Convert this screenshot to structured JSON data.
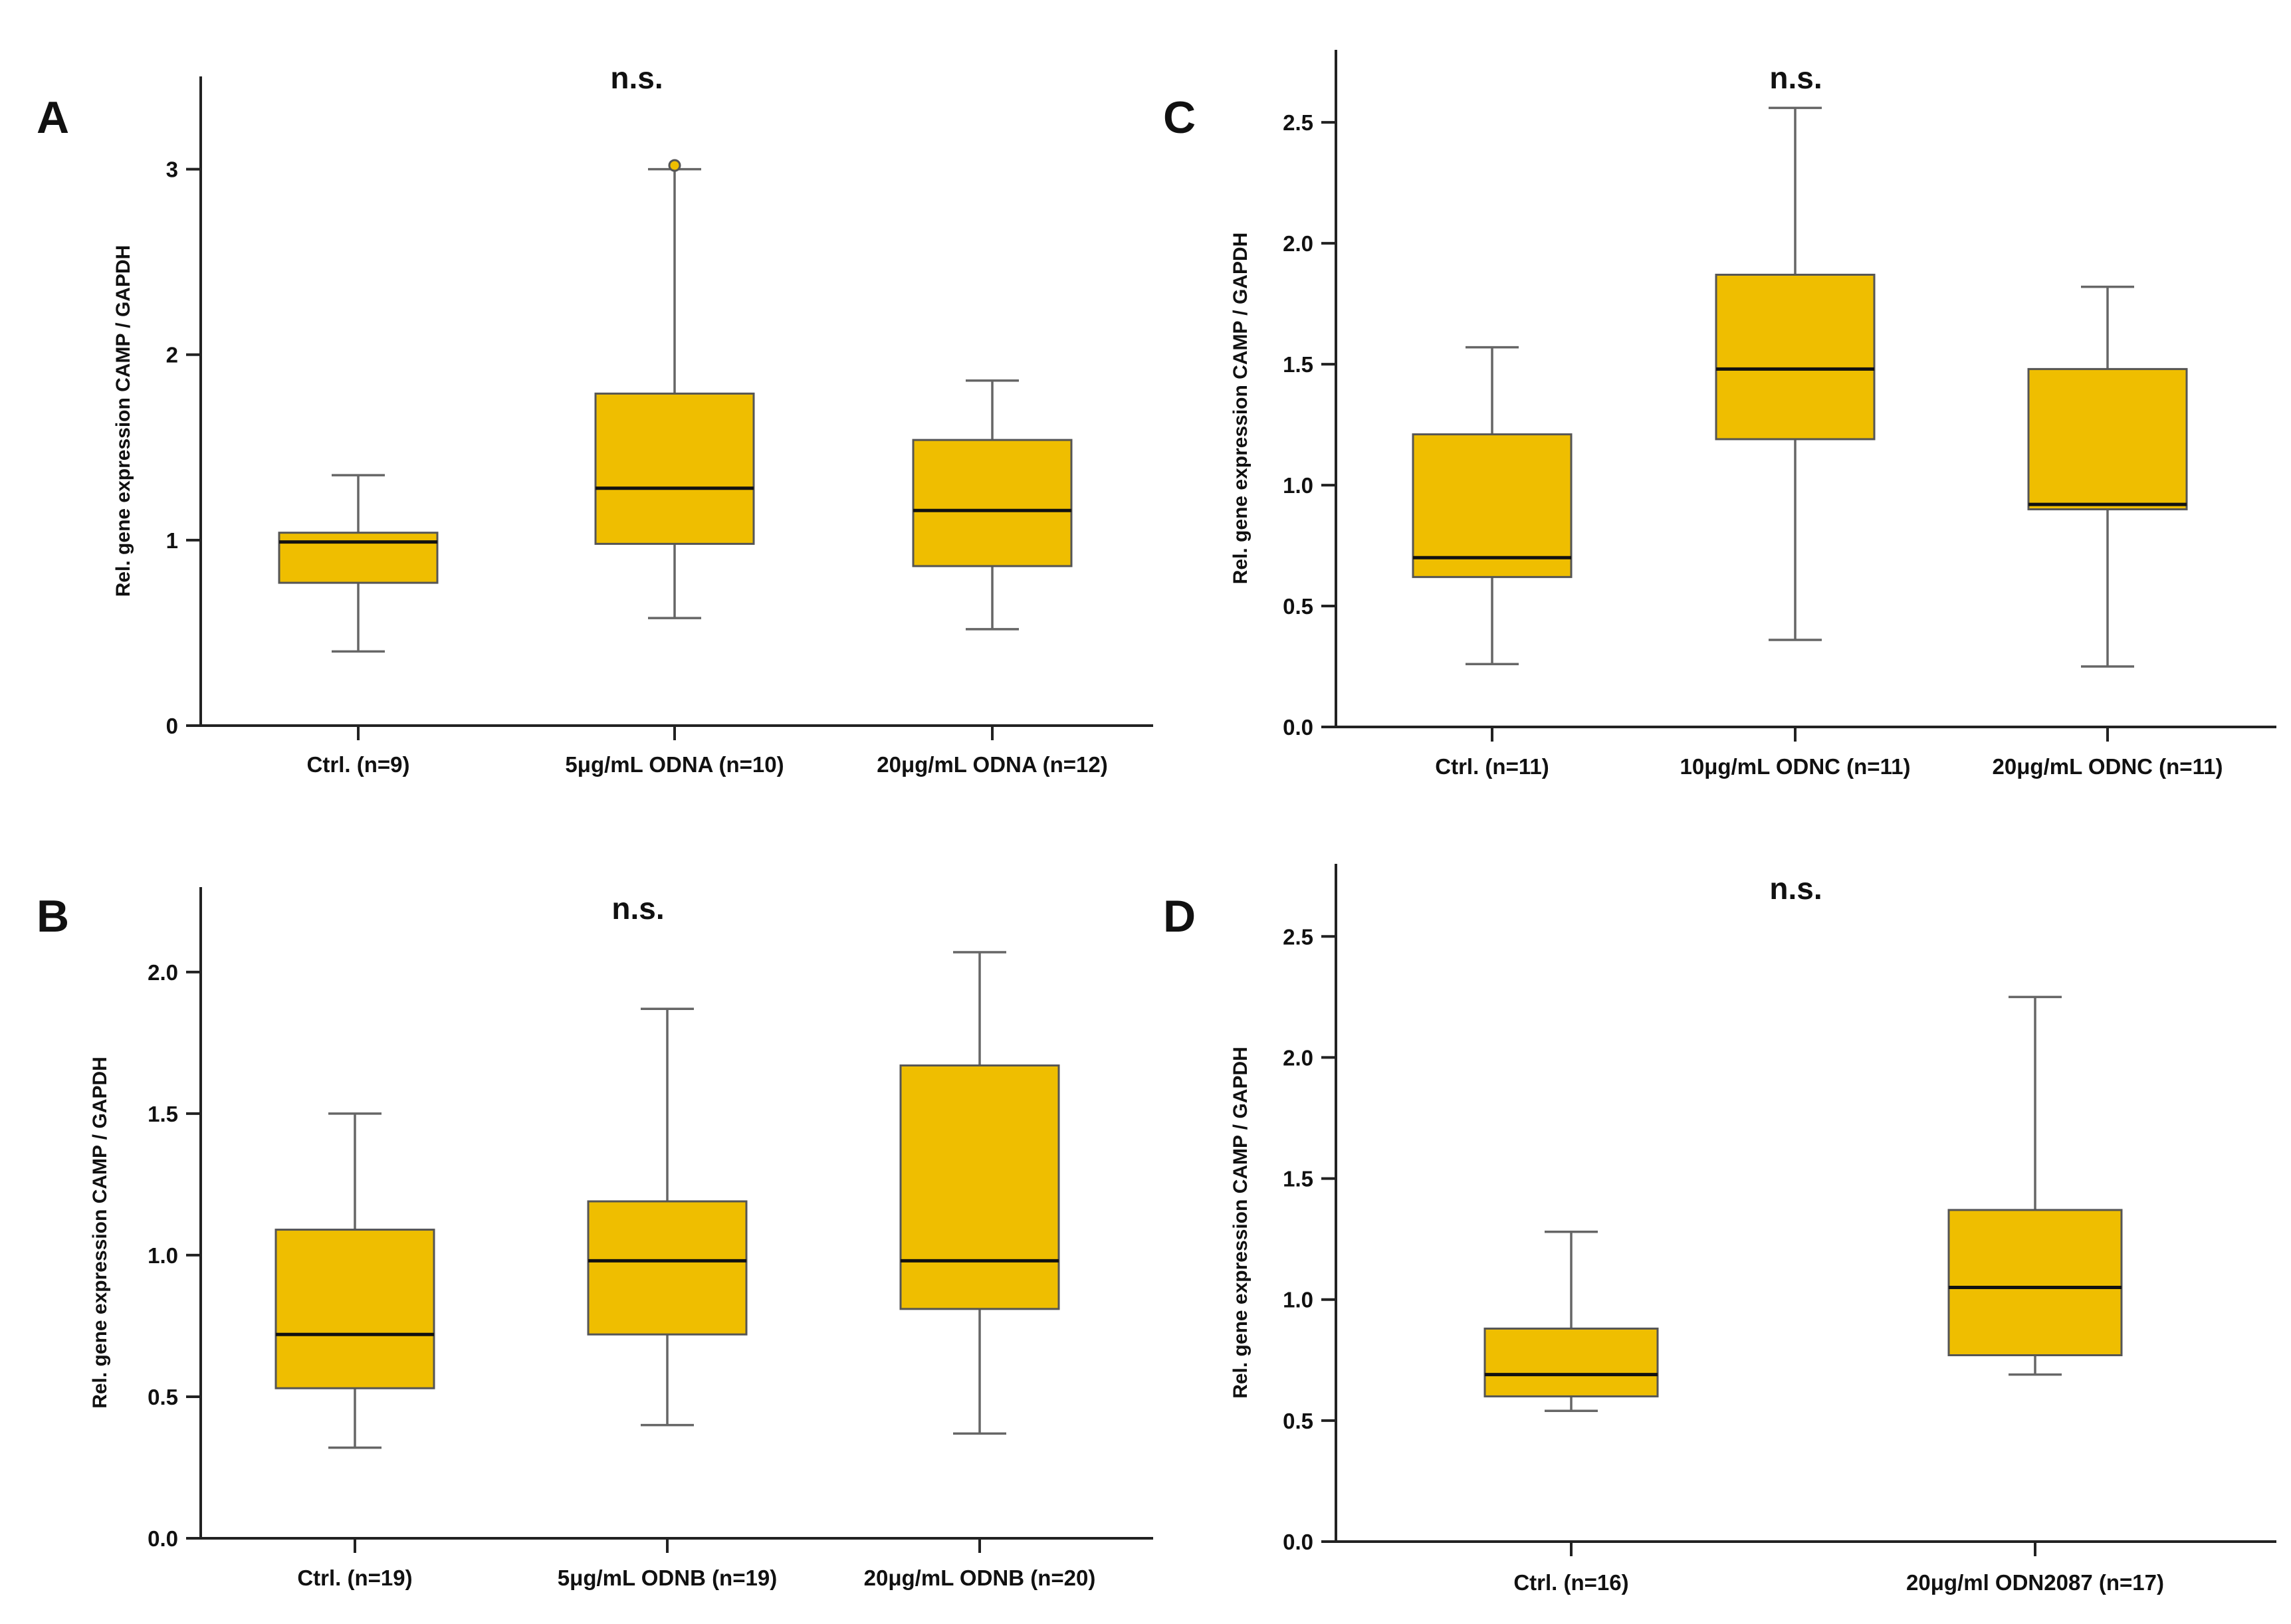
{
  "colors": {
    "box_fill": "#EFBE00",
    "box_stroke": "#555555",
    "median": "#111111",
    "axis": "#222222",
    "whisker": "#666666",
    "outlier_fill": "#EFBE00"
  },
  "chart_data": [
    {
      "panel": "A",
      "type": "box",
      "annotation": "n.s.",
      "ylabel": "Rel. gene expression CAMP / GAPDH",
      "ylim": [
        0,
        3.5
      ],
      "yticks": [
        0,
        1,
        2,
        3
      ],
      "ytick_labels": [
        "0",
        "1",
        "2",
        "3"
      ],
      "categories": [
        "Ctrl. (n=9)",
        "5μg/mL ODNA (n=10)",
        "20μg/mL ODNA (n=12)"
      ],
      "boxes": [
        {
          "min": 0.4,
          "q1": 0.77,
          "median": 0.99,
          "q3": 1.04,
          "max": 1.35
        },
        {
          "min": 0.58,
          "q1": 0.98,
          "median": 1.28,
          "q3": 1.79,
          "max": 3.0,
          "outliers": [
            3.02
          ]
        },
        {
          "min": 0.52,
          "q1": 0.86,
          "median": 1.16,
          "q3": 1.54,
          "max": 1.86
        }
      ]
    },
    {
      "panel": "B",
      "type": "box",
      "annotation": "n.s.",
      "ylabel": "Rel. gene expression CAMP / GAPDH",
      "ylim": [
        0,
        2.3
      ],
      "yticks": [
        0,
        0.5,
        1.0,
        1.5,
        2.0
      ],
      "ytick_labels": [
        "0.0",
        "0.5",
        "1.0",
        "1.5",
        "2.0"
      ],
      "categories": [
        "Ctrl. (n=19)",
        "5μg/mL ODNB (n=19)",
        "20μg/mL ODNB (n=20)"
      ],
      "boxes": [
        {
          "min": 0.32,
          "q1": 0.53,
          "median": 0.72,
          "q3": 1.09,
          "max": 1.5
        },
        {
          "min": 0.4,
          "q1": 0.72,
          "median": 0.98,
          "q3": 1.19,
          "max": 1.87
        },
        {
          "min": 0.37,
          "q1": 0.81,
          "median": 0.98,
          "q3": 1.67,
          "max": 2.07
        }
      ]
    },
    {
      "panel": "C",
      "type": "box",
      "annotation": "n.s.",
      "ylabel": "Rel. gene expression CAMP / GAPDH",
      "ylim": [
        0,
        2.8
      ],
      "yticks": [
        0,
        0.5,
        1.0,
        1.5,
        2.0,
        2.5
      ],
      "ytick_labels": [
        "0.0",
        "0.5",
        "1.0",
        "1.5",
        "2.0",
        "2.5"
      ],
      "categories": [
        "Ctrl. (n=11)",
        "10μg/mL ODNC (n=11)",
        "20μg/mL ODNC (n=11)"
      ],
      "boxes": [
        {
          "min": 0.26,
          "q1": 0.62,
          "median": 0.7,
          "q3": 1.21,
          "max": 1.57
        },
        {
          "min": 0.36,
          "q1": 1.19,
          "median": 1.48,
          "q3": 1.87,
          "max": 2.56
        },
        {
          "min": 0.25,
          "q1": 0.9,
          "median": 0.92,
          "q3": 1.48,
          "max": 1.82
        }
      ]
    },
    {
      "panel": "D",
      "type": "box",
      "annotation": "n.s.",
      "ylabel": "Rel. gene expression CAMP / GAPDH",
      "ylim": [
        0,
        2.8
      ],
      "yticks": [
        0,
        0.5,
        1.0,
        1.5,
        2.0,
        2.5
      ],
      "ytick_labels": [
        "0.0",
        "0.5",
        "1.0",
        "1.5",
        "2.0",
        "2.5"
      ],
      "categories": [
        "Ctrl. (n=16)",
        "20μg/ml ODN2087 (n=17)"
      ],
      "boxes": [
        {
          "min": 0.54,
          "q1": 0.6,
          "median": 0.69,
          "q3": 0.88,
          "max": 1.28
        },
        {
          "min": 0.69,
          "q1": 0.77,
          "median": 1.05,
          "q3": 1.37,
          "max": 2.25
        }
      ]
    }
  ]
}
